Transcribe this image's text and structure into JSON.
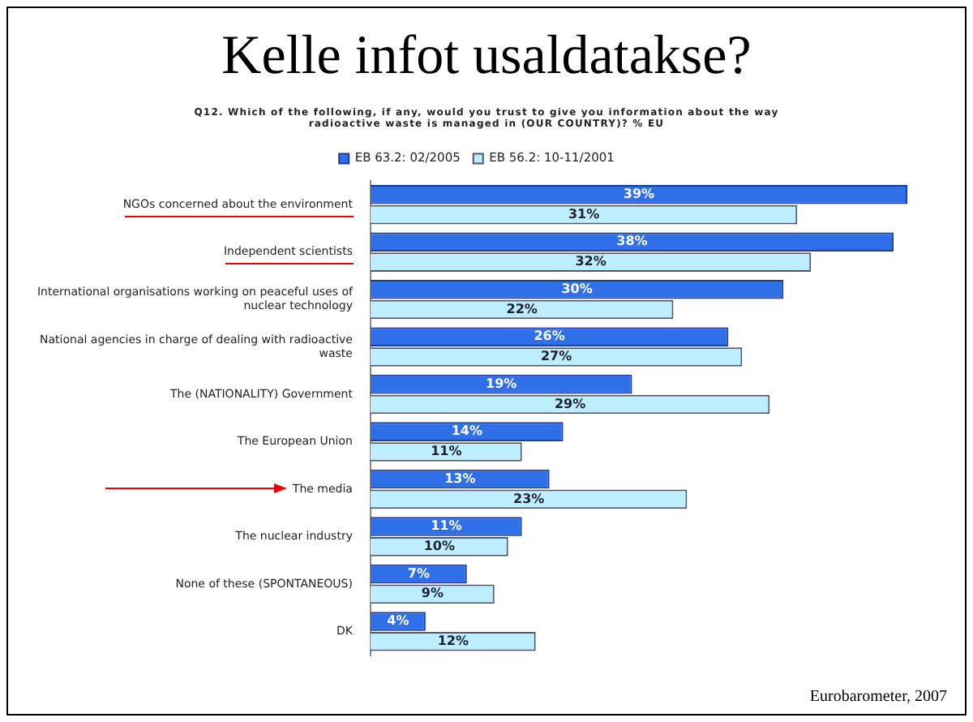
{
  "chart_data": {
    "type": "bar",
    "orientation": "horizontal",
    "title": "Kelle infot usaldatakse?",
    "subtitle": "Q12. Which of the following, if any, would you trust to give you information about the way radioactive waste is managed in (OUR COUNTRY)? % EU",
    "categories": [
      "NGOs concerned about the environment",
      "Independent scientists",
      "International organisations working on peaceful uses of nuclear technology",
      "National agencies in charge of dealing with radioactive waste",
      "The (NATIONALITY) Government",
      "The European Union",
      "The media",
      "The nuclear industry",
      "None of these (SPONTANEOUS)",
      "DK"
    ],
    "series": [
      {
        "name": "EB 63.2: 02/2005",
        "color": "#2f6fe8",
        "values": [
          39,
          38,
          30,
          26,
          19,
          14,
          13,
          11,
          7,
          4
        ],
        "value_labels": [
          "39%",
          "38%",
          "30%",
          "26%",
          "19%",
          "14%",
          "13%",
          "11%",
          "7%",
          "4%"
        ]
      },
      {
        "name": "EB 56.2: 10-11/2001",
        "color": "#bdeeff",
        "values": [
          31,
          32,
          22,
          27,
          29,
          11,
          23,
          10,
          9,
          12
        ],
        "value_labels": [
          "31%",
          "32%",
          "22%",
          "27%",
          "29%",
          "11%",
          "23%",
          "10%",
          "9%",
          "12%"
        ]
      }
    ],
    "legend": "top",
    "annotations": [
      "Eurobarometer, 2007"
    ]
  }
}
